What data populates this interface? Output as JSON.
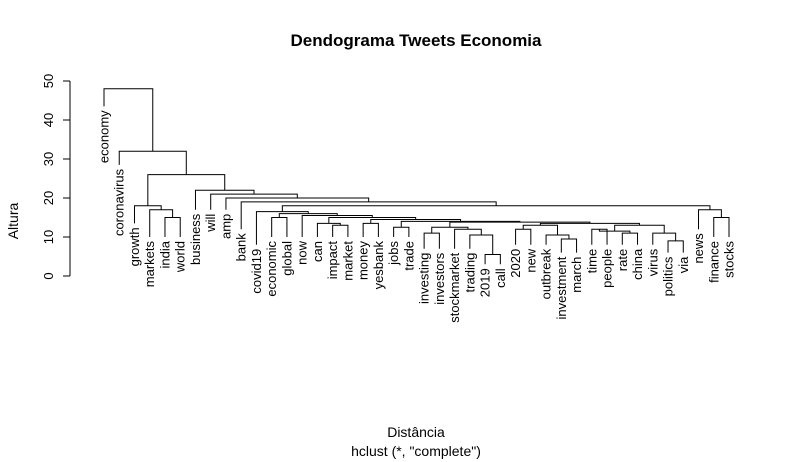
{
  "chart_data": {
    "type": "dendrogram",
    "title": "Dendograma Tweets Economia",
    "xlabel": "Distância",
    "subtitle": "hclust (*, \"complete\")",
    "ylabel": "Altura",
    "ylim": [
      0,
      50
    ],
    "yticks": [
      0,
      10,
      20,
      30,
      40,
      50
    ],
    "leaves": [
      "economy",
      "coronavirus",
      "growth",
      "markets",
      "india",
      "world",
      "business",
      "will",
      "amp",
      "bank",
      "covid19",
      "economic",
      "global",
      "now",
      "can",
      "impact",
      "market",
      "money",
      "yesbank",
      "jobs",
      "trade",
      "investing",
      "investors",
      "stockmarket",
      "trading",
      "2019",
      "call",
      "2020",
      "new",
      "outbreak",
      "investment",
      "march",
      "time",
      "people",
      "rate",
      "china",
      "virus",
      "politics",
      "via",
      "news",
      "finance",
      "stocks"
    ],
    "merges": [
      {
        "a": "impact",
        "b": "market",
        "height": 13
      },
      {
        "a": "jobs",
        "b": "trade",
        "height": 12.5
      },
      {
        "a": "investing",
        "b": "investors",
        "height": 11
      },
      {
        "a": "2019",
        "b": "call",
        "height": 5.5
      },
      {
        "a": "2020",
        "b": "new",
        "height": 12
      },
      {
        "a": "investment",
        "b": "march",
        "height": 9.5
      },
      {
        "a": "time",
        "b": "people",
        "height": 12
      },
      {
        "a": "rate",
        "b": "china",
        "height": 11
      },
      {
        "a": "politics",
        "b": "via",
        "height": 9
      },
      {
        "a": "finance",
        "b": "stocks",
        "height": 15
      },
      {
        "a": "india",
        "b": "world",
        "height": 15
      },
      {
        "a": "economic",
        "b": "global",
        "height": 15
      },
      {
        "a": "money",
        "b": "yesbank",
        "height": 13.5
      },
      {
        "a": "trading",
        "b": "2019+call",
        "height": 10.5
      },
      {
        "a": "outbreak",
        "b": "investment+march",
        "height": 10.5
      },
      {
        "a": "time+people",
        "b": "rate+china",
        "height": 11.5
      },
      {
        "a": "virus",
        "b": "politics+via",
        "height": 11
      },
      {
        "a": "news",
        "b": "finance+stocks",
        "height": 17
      },
      {
        "a": "markets",
        "b": "india+world",
        "height": 17
      },
      {
        "a": "can",
        "b": "impact+market",
        "height": 13.5
      },
      {
        "a": "stockmarket",
        "b": "trading+2019+call",
        "height": 12
      },
      {
        "a": "investing+investors",
        "b": "stockmarket+trading+2019+call",
        "height": 12.5
      },
      {
        "a": "2020+new",
        "b": "outbreak+investment+march",
        "height": 13
      },
      {
        "a": "time+people+rate+china",
        "b": "virus+politics+via",
        "height": 13
      },
      {
        "a": "2020+new+outbreak+investment+march",
        "b": "time+people+rate+china+virus+politics+via",
        "height": 13.5
      },
      {
        "a": "investing-group",
        "b": "2020-group",
        "height": 13.8
      },
      {
        "a": "jobs+trade",
        "b": "investing-2020-group",
        "height": 14
      },
      {
        "a": "money+yesbank",
        "b": "jobs-group",
        "height": 14.5
      },
      {
        "a": "can-group",
        "b": "money-group",
        "height": 15
      },
      {
        "a": "now",
        "b": "can-money-group",
        "height": 15.5
      },
      {
        "a": "economic+global",
        "b": "now-group",
        "height": 16
      },
      {
        "a": "covid19",
        "b": "economic-now-group",
        "height": 16.5
      },
      {
        "a": "covid19-group",
        "b": "news-group",
        "height": 18
      },
      {
        "a": "bank",
        "b": "covid19-news-group",
        "height": 19
      },
      {
        "a": "amp",
        "b": "bank-group",
        "height": 20
      },
      {
        "a": "will",
        "b": "amp-group",
        "height": 21
      },
      {
        "a": "business",
        "b": "will-group",
        "height": 22
      },
      {
        "a": "growth",
        "b": "markets+india+world",
        "height": 18
      },
      {
        "a": "growth-group",
        "b": "business-group",
        "height": 26
      },
      {
        "a": "coronavirus",
        "b": "growth-business-group",
        "height": 32
      },
      {
        "a": "economy",
        "b": "coronavirus-group",
        "height": 48
      }
    ]
  }
}
